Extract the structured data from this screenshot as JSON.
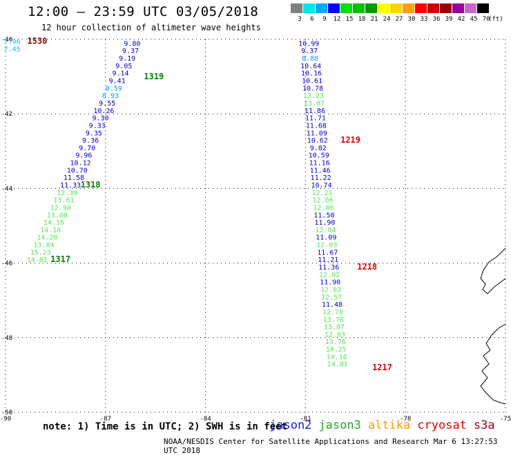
{
  "header": {
    "title": "12:00 – 23:59 UTC 03/05/2018",
    "subtitle": "12 hour collection of altimeter wave heights"
  },
  "footer": {
    "note": "note: 1) Time is in UTC; 2) SWH is in feet",
    "credit": "NOAA/NESDIS Center for Satellite Applications and Research    Mar  6 13:27:53 UTC 2018"
  },
  "legend": {
    "items": [
      {
        "label": "jason2",
        "color": "#1a1adc"
      },
      {
        "label": "jason3",
        "color": "#2aa02a"
      },
      {
        "label": "altika",
        "color": "#f5a000"
      },
      {
        "label": "cryosat",
        "color": "#e00000"
      },
      {
        "label": "s3a",
        "color": "#a0001a"
      }
    ]
  },
  "color_scale": {
    "unit": "(ft)",
    "bins": [
      {
        "label": "3",
        "color": "#808080"
      },
      {
        "label": "6",
        "color": "#00e5ee"
      },
      {
        "label": "9",
        "color": "#00aaff"
      },
      {
        "label": "12",
        "color": "#0000ff"
      },
      {
        "label": "15",
        "color": "#00e000"
      },
      {
        "label": "18",
        "color": "#00c000"
      },
      {
        "label": "21",
        "color": "#009900"
      },
      {
        "label": "24",
        "color": "#ffff00"
      },
      {
        "label": "27",
        "color": "#ffd200"
      },
      {
        "label": "30",
        "color": "#ffa000"
      },
      {
        "label": "33",
        "color": "#ff0000"
      },
      {
        "label": "36",
        "color": "#cc0000"
      },
      {
        "label": "39",
        "color": "#990000"
      },
      {
        "label": "42",
        "color": "#990099"
      },
      {
        "label": "45",
        "color": "#cc66cc"
      },
      {
        "label": "70",
        "color": "#000000"
      }
    ]
  },
  "chart_data": {
    "type": "scatter",
    "xlim": [
      -90,
      -75
    ],
    "ylim": [
      -50,
      -40
    ],
    "x_ticks": [
      "-90",
      "-87",
      "-84",
      "-81",
      "-78",
      "-75"
    ],
    "y_ticks": [
      "-40",
      "-42",
      "-44",
      "-46",
      "-48",
      "-50"
    ],
    "grid": true,
    "series": [
      {
        "points": [
          {
            "lon": -89.8,
            "lat": -40.05,
            "label": "7.96",
            "color": "#00c0ff"
          },
          {
            "lon": -89.8,
            "lat": -40.25,
            "label": "7.45",
            "color": "#00c0ff"
          },
          {
            "lon": -86.2,
            "lat": -40.1,
            "label": "9.80",
            "color": "#0000cc"
          },
          {
            "lon": -86.25,
            "lat": -40.3,
            "label": "9.37",
            "color": "#0000cc"
          },
          {
            "lon": -86.35,
            "lat": -40.5,
            "label": "9.19",
            "color": "#0000cc"
          },
          {
            "lon": -86.45,
            "lat": -40.7,
            "label": "9.05",
            "color": "#0000cc"
          },
          {
            "lon": -86.55,
            "lat": -40.9,
            "label": "9.14",
            "color": "#0000cc"
          },
          {
            "lon": -86.65,
            "lat": -41.1,
            "label": "9.41",
            "color": "#0000cc"
          },
          {
            "lon": -86.75,
            "lat": -41.3,
            "label": "8.59",
            "color": "#00a0ff"
          },
          {
            "lon": -86.85,
            "lat": -41.5,
            "label": "8.93",
            "color": "#00a0ff"
          },
          {
            "lon": -86.95,
            "lat": -41.7,
            "label": "9.55",
            "color": "#0000cc"
          },
          {
            "lon": -87.05,
            "lat": -41.9,
            "label": "10.26",
            "color": "#0000cc"
          },
          {
            "lon": -87.15,
            "lat": -42.1,
            "label": "9.30",
            "color": "#0000cc"
          },
          {
            "lon": -87.25,
            "lat": -42.3,
            "label": "9.33",
            "color": "#0000cc"
          },
          {
            "lon": -87.35,
            "lat": -42.5,
            "label": "9.35",
            "color": "#0000cc"
          },
          {
            "lon": -87.45,
            "lat": -42.7,
            "label": "9.36",
            "color": "#0000cc"
          },
          {
            "lon": -87.55,
            "lat": -42.9,
            "label": "9.70",
            "color": "#0000cc"
          },
          {
            "lon": -87.65,
            "lat": -43.1,
            "label": "9.96",
            "color": "#0000cc"
          },
          {
            "lon": -87.75,
            "lat": -43.3,
            "label": "10.12",
            "color": "#0000cc"
          },
          {
            "lon": -87.85,
            "lat": -43.5,
            "label": "10.70",
            "color": "#0000cc"
          },
          {
            "lon": -87.95,
            "lat": -43.7,
            "label": "11.58",
            "color": "#0000cc"
          },
          {
            "lon": -88.05,
            "lat": -43.9,
            "label": "11.33",
            "color": "#0000cc"
          },
          {
            "lon": -88.15,
            "lat": -44.1,
            "label": "12.39",
            "color": "#55e855"
          },
          {
            "lon": -88.25,
            "lat": -44.3,
            "label": "13.61",
            "color": "#55e855"
          },
          {
            "lon": -88.35,
            "lat": -44.5,
            "label": "12.98",
            "color": "#55e855"
          },
          {
            "lon": -88.45,
            "lat": -44.7,
            "label": "13.00",
            "color": "#55e855"
          },
          {
            "lon": -88.55,
            "lat": -44.9,
            "label": "14.16",
            "color": "#55e855"
          },
          {
            "lon": -88.65,
            "lat": -45.1,
            "label": "14.10",
            "color": "#55e855"
          },
          {
            "lon": -88.75,
            "lat": -45.3,
            "label": "14.20",
            "color": "#55e855"
          },
          {
            "lon": -88.85,
            "lat": -45.5,
            "label": "13.84",
            "color": "#55e855"
          },
          {
            "lon": -88.95,
            "lat": -45.7,
            "label": "15.23",
            "color": "#55e855"
          },
          {
            "lon": -89.05,
            "lat": -45.9,
            "label": "14.81",
            "color": "#55e855"
          },
          {
            "lon": -80.9,
            "lat": -40.1,
            "label": "10.99",
            "color": "#0000cc"
          },
          {
            "lon": -80.88,
            "lat": -40.3,
            "label": "9.37",
            "color": "#0000cc"
          },
          {
            "lon": -80.86,
            "lat": -40.5,
            "label": "8.88",
            "color": "#00a0ff"
          },
          {
            "lon": -80.84,
            "lat": -40.7,
            "label": "10.64",
            "color": "#0000cc"
          },
          {
            "lon": -80.82,
            "lat": -40.9,
            "label": "10.16",
            "color": "#0000cc"
          },
          {
            "lon": -80.8,
            "lat": -41.1,
            "label": "10.61",
            "color": "#0000cc"
          },
          {
            "lon": -80.78,
            "lat": -41.3,
            "label": "10.78",
            "color": "#0000cc"
          },
          {
            "lon": -80.76,
            "lat": -41.5,
            "label": "12.23",
            "color": "#55e855"
          },
          {
            "lon": -80.74,
            "lat": -41.7,
            "label": "13.07",
            "color": "#55e855"
          },
          {
            "lon": -80.72,
            "lat": -41.9,
            "label": "11.86",
            "color": "#0000cc"
          },
          {
            "lon": -80.7,
            "lat": -42.1,
            "label": "11.71",
            "color": "#0000cc"
          },
          {
            "lon": -80.68,
            "lat": -42.3,
            "label": "11.68",
            "color": "#0000cc"
          },
          {
            "lon": -80.66,
            "lat": -42.5,
            "label": "11.09",
            "color": "#0000cc"
          },
          {
            "lon": -80.64,
            "lat": -42.7,
            "label": "10.62",
            "color": "#0000cc"
          },
          {
            "lon": -80.62,
            "lat": -42.9,
            "label": "9.82",
            "color": "#0000cc"
          },
          {
            "lon": -80.6,
            "lat": -43.1,
            "label": "10.59",
            "color": "#0000cc"
          },
          {
            "lon": -80.58,
            "lat": -43.3,
            "label": "11.16",
            "color": "#0000cc"
          },
          {
            "lon": -80.56,
            "lat": -43.5,
            "label": "11.46",
            "color": "#0000cc"
          },
          {
            "lon": -80.54,
            "lat": -43.7,
            "label": "11.22",
            "color": "#0000cc"
          },
          {
            "lon": -80.52,
            "lat": -43.9,
            "label": "10.74",
            "color": "#0000cc"
          },
          {
            "lon": -80.5,
            "lat": -44.1,
            "label": "12.21",
            "color": "#55e855"
          },
          {
            "lon": -80.48,
            "lat": -44.3,
            "label": "12.06",
            "color": "#55e855"
          },
          {
            "lon": -80.46,
            "lat": -44.5,
            "label": "12.06",
            "color": "#55e855"
          },
          {
            "lon": -80.44,
            "lat": -44.7,
            "label": "11.50",
            "color": "#0000cc"
          },
          {
            "lon": -80.42,
            "lat": -44.9,
            "label": "11.90",
            "color": "#0000cc"
          },
          {
            "lon": -80.4,
            "lat": -45.1,
            "label": "12.04",
            "color": "#55e855"
          },
          {
            "lon": -80.38,
            "lat": -45.3,
            "label": "11.09",
            "color": "#0000cc"
          },
          {
            "lon": -80.36,
            "lat": -45.5,
            "label": "12.03",
            "color": "#55e855"
          },
          {
            "lon": -80.34,
            "lat": -45.7,
            "label": "11.67",
            "color": "#0000cc"
          },
          {
            "lon": -80.32,
            "lat": -45.9,
            "label": "11.21",
            "color": "#0000cc"
          },
          {
            "lon": -80.3,
            "lat": -46.1,
            "label": "11.36",
            "color": "#0000cc"
          },
          {
            "lon": -80.28,
            "lat": -46.3,
            "label": "12.02",
            "color": "#55e855"
          },
          {
            "lon": -80.26,
            "lat": -46.5,
            "label": "11.90",
            "color": "#0000cc"
          },
          {
            "lon": -80.24,
            "lat": -46.7,
            "label": "12.83",
            "color": "#55e855"
          },
          {
            "lon": -80.22,
            "lat": -46.9,
            "label": "12.57",
            "color": "#55e855"
          },
          {
            "lon": -80.2,
            "lat": -47.1,
            "label": "11.48",
            "color": "#0000cc"
          },
          {
            "lon": -80.18,
            "lat": -47.3,
            "label": "12.78",
            "color": "#55e855"
          },
          {
            "lon": -80.16,
            "lat": -47.5,
            "label": "13.76",
            "color": "#55e855"
          },
          {
            "lon": -80.14,
            "lat": -47.7,
            "label": "13.87",
            "color": "#55e855"
          },
          {
            "lon": -80.12,
            "lat": -47.9,
            "label": "12.83",
            "color": "#55e855"
          },
          {
            "lon": -80.1,
            "lat": -48.1,
            "label": "13.76",
            "color": "#55e855"
          },
          {
            "lon": -80.08,
            "lat": -48.3,
            "label": "14.25",
            "color": "#55e855"
          },
          {
            "lon": -80.06,
            "lat": -48.5,
            "label": "14.16",
            "color": "#55e855"
          },
          {
            "lon": -80.04,
            "lat": -48.7,
            "label": "14.81",
            "color": "#55e855"
          }
        ]
      }
    ],
    "annotations": [
      {
        "lon": -89.05,
        "lat": -40.05,
        "label": "1530",
        "color": "#8b0000"
      },
      {
        "lon": -85.55,
        "lat": -41.0,
        "label": "1319",
        "color": "#008000"
      },
      {
        "lon": -87.45,
        "lat": -43.9,
        "label": "1318",
        "color": "#008000"
      },
      {
        "lon": -88.35,
        "lat": -45.9,
        "label": "1317",
        "color": "#008000"
      },
      {
        "lon": -79.65,
        "lat": -42.7,
        "label": "1219",
        "color": "#e00000"
      },
      {
        "lon": -79.15,
        "lat": -46.1,
        "label": "1218",
        "color": "#e00000"
      },
      {
        "lon": -78.7,
        "lat": -48.8,
        "label": "1217",
        "color": "#e00000"
      }
    ]
  }
}
